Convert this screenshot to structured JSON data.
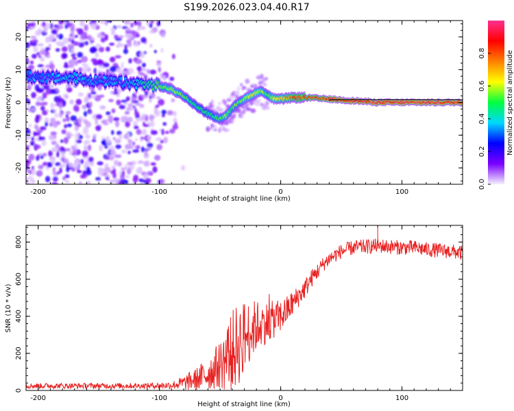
{
  "title": "S199.2026.023.04.40.R17",
  "chart_data": [
    {
      "type": "heatmap",
      "xlabel": "Height of straight line (km)",
      "ylabel": "Frequency (Hz)",
      "xlim": [
        -210,
        150
      ],
      "ylim": [
        -25,
        25
      ],
      "x_ticks": [
        -200,
        -100,
        0,
        100
      ],
      "x_tick_labels": [
        "-200",
        "-100",
        "0",
        "100"
      ],
      "y_ticks": [
        20,
        10,
        0,
        -10,
        -20
      ],
      "y_tick_labels": [
        "20",
        "10",
        "0",
        "-10",
        "-20"
      ],
      "colorbar": {
        "label": "Normalized spectral amplitude",
        "range": [
          0,
          1
        ],
        "ticks": [
          0.0,
          0.2,
          0.4,
          0.6,
          0.8
        ],
        "tick_labels": [
          "0.0",
          "0.2",
          "0.4",
          "0.6",
          "0.8"
        ],
        "colormap": [
          "#f5f0ff",
          "#7a00ff",
          "#0000ff",
          "#00d8ff",
          "#00ff40",
          "#ffff00",
          "#ff8000",
          "#ff0000",
          "#ff3090"
        ]
      },
      "ridge": {
        "x": [
          -210,
          -190,
          -170,
          -150,
          -130,
          -110,
          -100,
          -90,
          -80,
          -70,
          -60,
          -50,
          -45,
          -40,
          -35,
          -30,
          -25,
          -20,
          -15,
          -10,
          -5,
          0,
          10,
          20,
          40,
          60,
          80,
          100,
          120,
          150
        ],
        "y": [
          8,
          7.5,
          7.5,
          6.5,
          6,
          5.5,
          5,
          4,
          2,
          -1,
          -3.5,
          -5,
          -4,
          -2,
          0,
          1,
          2,
          3,
          3.5,
          2,
          1,
          1,
          1.5,
          1.5,
          1,
          0.5,
          0,
          0,
          0,
          0
        ],
        "amplitude": [
          0.35,
          0.35,
          0.4,
          0.35,
          0.35,
          0.45,
          0.55,
          0.6,
          0.55,
          0.5,
          0.5,
          0.55,
          0.6,
          0.55,
          0.55,
          0.6,
          0.65,
          0.65,
          0.6,
          0.55,
          0.7,
          0.7,
          0.8,
          0.85,
          0.9,
          0.95,
          0.95,
          0.95,
          0.95,
          0.95
        ]
      }
    },
    {
      "type": "line",
      "xlabel": "Height of straight line (km)",
      "ylabel": "SNR (10 * v/v)",
      "xlim": [
        -210,
        150
      ],
      "ylim": [
        0,
        890
      ],
      "x_ticks": [
        -200,
        -100,
        0,
        100
      ],
      "x_tick_labels": [
        "-200",
        "-100",
        "0",
        "100"
      ],
      "y_ticks": [
        0,
        200,
        400,
        600,
        800
      ],
      "y_tick_labels": [
        "0",
        "200",
        "400",
        "600",
        "800"
      ],
      "series": [
        {
          "name": "SNR",
          "color": "#e82020",
          "x": [
            -210,
            -190,
            -170,
            -150,
            -130,
            -110,
            -90,
            -80,
            -70,
            -60,
            -50,
            -45,
            -40,
            -35,
            -30,
            -25,
            -20,
            -15,
            -10,
            -5,
            0,
            5,
            10,
            15,
            20,
            25,
            30,
            35,
            40,
            50,
            60,
            70,
            80,
            90,
            100,
            110,
            120,
            130,
            140,
            150
          ],
          "y": [
            25,
            25,
            25,
            25,
            25,
            25,
            28,
            40,
            60,
            90,
            140,
            170,
            210,
            250,
            290,
            320,
            350,
            360,
            370,
            385,
            400,
            430,
            470,
            510,
            550,
            600,
            640,
            680,
            710,
            750,
            770,
            775,
            780,
            775,
            770,
            770,
            760,
            755,
            750,
            740
          ],
          "noise": [
            15,
            15,
            15,
            15,
            15,
            15,
            20,
            40,
            60,
            90,
            130,
            180,
            220,
            230,
            200,
            160,
            140,
            120,
            110,
            100,
            90,
            80,
            70,
            60,
            55,
            50,
            45,
            40,
            40,
            40,
            40,
            40,
            40,
            40,
            40,
            40,
            40,
            40,
            40,
            40
          ],
          "peak": {
            "x": 80,
            "y": 885
          }
        }
      ]
    }
  ]
}
